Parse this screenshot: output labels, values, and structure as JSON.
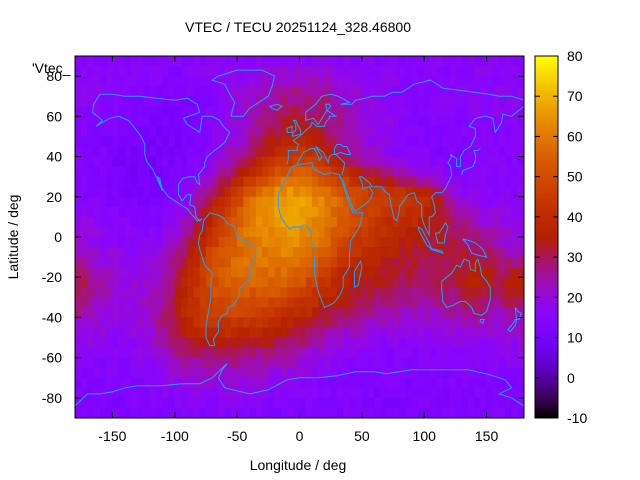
{
  "chart_data": {
    "type": "heatmap",
    "title": "VTEC / TECU 20251124_328.46800",
    "xlabel": "Longitude / deg",
    "ylabel": "Latitude / deg",
    "xlim": [
      -180,
      180
    ],
    "ylim": [
      -90,
      90
    ],
    "xticks": [
      -150,
      -100,
      -50,
      0,
      50,
      100,
      150
    ],
    "yticks": [
      -80,
      -60,
      -40,
      -20,
      0,
      20,
      40,
      60,
      80
    ],
    "series_key": "'Vtec_",
    "colorbar": {
      "min": -10,
      "max": 80,
      "ticks": [
        -10,
        0,
        10,
        20,
        30,
        40,
        50,
        60,
        70,
        80
      ],
      "palette": "gnuplot-rgbformulae-7-5-15"
    },
    "grid_step_deg": 5,
    "lons": [
      -180,
      -170,
      -160,
      -150,
      -140,
      -130,
      -120,
      -110,
      -100,
      -90,
      -80,
      -70,
      -60,
      -50,
      -40,
      -30,
      -20,
      -10,
      0,
      10,
      20,
      30,
      40,
      50,
      60,
      70,
      80,
      90,
      100,
      110,
      120,
      130,
      140,
      150,
      160,
      170,
      180
    ],
    "lats": [
      90,
      80,
      70,
      60,
      50,
      40,
      30,
      20,
      10,
      0,
      -10,
      -20,
      -30,
      -40,
      -50,
      -60,
      -70,
      -80,
      -90
    ],
    "vtec": [
      [
        15,
        15,
        15,
        15,
        15,
        15,
        15,
        15,
        15,
        15,
        15,
        15,
        15,
        15,
        15,
        15,
        15,
        15,
        15,
        15,
        15,
        15,
        15,
        15,
        15,
        15,
        15,
        15,
        15,
        15,
        15,
        15,
        15,
        15,
        15,
        15,
        15
      ],
      [
        16,
        16,
        16,
        15,
        15,
        15,
        15,
        14,
        14,
        14,
        15,
        16,
        17,
        18,
        19,
        20,
        21,
        22,
        22,
        22,
        21,
        20,
        19,
        18,
        17,
        16,
        16,
        15,
        15,
        15,
        15,
        15,
        16,
        16,
        16,
        16,
        16
      ],
      [
        17,
        16,
        16,
        15,
        15,
        14,
        14,
        13,
        13,
        13,
        14,
        15,
        17,
        19,
        21,
        23,
        25,
        26,
        27,
        27,
        26,
        24,
        22,
        20,
        18,
        17,
        16,
        15,
        15,
        15,
        16,
        16,
        17,
        17,
        17,
        17,
        17
      ],
      [
        16,
        15,
        14,
        13,
        13,
        12,
        12,
        12,
        12,
        12,
        13,
        15,
        17,
        20,
        23,
        26,
        29,
        31,
        32,
        31,
        29,
        26,
        23,
        20,
        18,
        17,
        16,
        15,
        14,
        14,
        15,
        15,
        16,
        16,
        16,
        16,
        16
      ],
      [
        15,
        14,
        13,
        12,
        11,
        11,
        11,
        11,
        11,
        12,
        13,
        15,
        18,
        21,
        24,
        28,
        32,
        35,
        36,
        34,
        31,
        27,
        23,
        20,
        18,
        17,
        16,
        15,
        14,
        13,
        14,
        15,
        15,
        15,
        15,
        15,
        15
      ],
      [
        14,
        13,
        12,
        11,
        10,
        10,
        10,
        10,
        11,
        12,
        14,
        17,
        21,
        26,
        31,
        36,
        40,
        43,
        44,
        42,
        38,
        33,
        28,
        24,
        21,
        19,
        17,
        16,
        15,
        14,
        14,
        14,
        15,
        15,
        15,
        14,
        14
      ],
      [
        15,
        14,
        13,
        12,
        11,
        10,
        10,
        11,
        12,
        14,
        17,
        22,
        28,
        35,
        42,
        48,
        53,
        56,
        57,
        55,
        51,
        46,
        41,
        37,
        33,
        30,
        27,
        24,
        20,
        17,
        16,
        15,
        15,
        16,
        16,
        16,
        15
      ],
      [
        16,
        15,
        14,
        13,
        12,
        11,
        11,
        12,
        14,
        18,
        24,
        32,
        40,
        48,
        55,
        61,
        65,
        67,
        67,
        65,
        61,
        57,
        53,
        50,
        48,
        47,
        46,
        45,
        42,
        34,
        25,
        19,
        17,
        16,
        16,
        16,
        16
      ],
      [
        18,
        17,
        16,
        15,
        14,
        13,
        13,
        14,
        17,
        22,
        30,
        39,
        47,
        54,
        60,
        64,
        66,
        67,
        66,
        64,
        60,
        56,
        52,
        48,
        45,
        43,
        41,
        40,
        38,
        35,
        31,
        26,
        22,
        20,
        19,
        18,
        18
      ],
      [
        20,
        19,
        18,
        17,
        16,
        15,
        15,
        17,
        21,
        27,
        35,
        44,
        51,
        56,
        60,
        62,
        63,
        64,
        64,
        62,
        58,
        53,
        48,
        44,
        41,
        39,
        37,
        36,
        34,
        33,
        32,
        30,
        28,
        25,
        22,
        21,
        20
      ],
      [
        24,
        22,
        21,
        19,
        18,
        17,
        18,
        21,
        26,
        33,
        41,
        49,
        54,
        57,
        59,
        60,
        61,
        62,
        61,
        58,
        53,
        47,
        42,
        39,
        37,
        35,
        33,
        32,
        31,
        31,
        31,
        32,
        33,
        31,
        27,
        25,
        24
      ],
      [
        34,
        28,
        24,
        22,
        20,
        19,
        20,
        24,
        30,
        37,
        45,
        51,
        55,
        57,
        57,
        57,
        57,
        56,
        54,
        50,
        45,
        40,
        37,
        35,
        34,
        33,
        32,
        31,
        30,
        30,
        31,
        33,
        36,
        35,
        30,
        36,
        34
      ],
      [
        31,
        26,
        23,
        21,
        20,
        20,
        22,
        26,
        32,
        38,
        44,
        48,
        51,
        52,
        52,
        51,
        50,
        48,
        45,
        42,
        38,
        35,
        33,
        31,
        30,
        29,
        28,
        27,
        27,
        27,
        28,
        30,
        32,
        31,
        27,
        33,
        31
      ],
      [
        25,
        23,
        21,
        20,
        19,
        20,
        22,
        27,
        33,
        39,
        43,
        45,
        46,
        46,
        45,
        44,
        42,
        40,
        38,
        35,
        32,
        29,
        27,
        25,
        24,
        23,
        22,
        21,
        21,
        22,
        23,
        24,
        25,
        24,
        22,
        24,
        25
      ],
      [
        20,
        19,
        18,
        17,
        17,
        18,
        20,
        25,
        30,
        34,
        36,
        37,
        37,
        37,
        36,
        35,
        34,
        32,
        30,
        27,
        24,
        22,
        20,
        19,
        18,
        17,
        17,
        17,
        17,
        17,
        18,
        19,
        19,
        19,
        18,
        19,
        20
      ],
      [
        16,
        16,
        15,
        15,
        15,
        16,
        18,
        21,
        24,
        26,
        27,
        28,
        28,
        28,
        27,
        26,
        25,
        24,
        22,
        20,
        18,
        17,
        16,
        15,
        15,
        14,
        14,
        14,
        14,
        14,
        15,
        15,
        16,
        16,
        16,
        16,
        16
      ],
      [
        14,
        14,
        14,
        14,
        14,
        15,
        16,
        17,
        19,
        20,
        21,
        21,
        21,
        21,
        20,
        20,
        19,
        18,
        17,
        16,
        15,
        14,
        14,
        13,
        13,
        13,
        13,
        13,
        13,
        13,
        13,
        14,
        14,
        14,
        14,
        14,
        14
      ],
      [
        13,
        13,
        13,
        13,
        13,
        14,
        14,
        15,
        16,
        16,
        17,
        17,
        17,
        17,
        16,
        16,
        15,
        15,
        14,
        14,
        13,
        13,
        13,
        13,
        13,
        13,
        13,
        13,
        13,
        13,
        13,
        13,
        13,
        13,
        13,
        13,
        13
      ],
      [
        13,
        13,
        13,
        13,
        13,
        13,
        13,
        13,
        13,
        13,
        13,
        13,
        13,
        13,
        13,
        13,
        13,
        13,
        13,
        13,
        13,
        13,
        13,
        13,
        13,
        13,
        13,
        13,
        13,
        13,
        13,
        13,
        13,
        13,
        13,
        13,
        13
      ]
    ]
  },
  "colors": {
    "coastline": "#1ea0ff",
    "axes": "#000000",
    "background": "#ffffff"
  }
}
